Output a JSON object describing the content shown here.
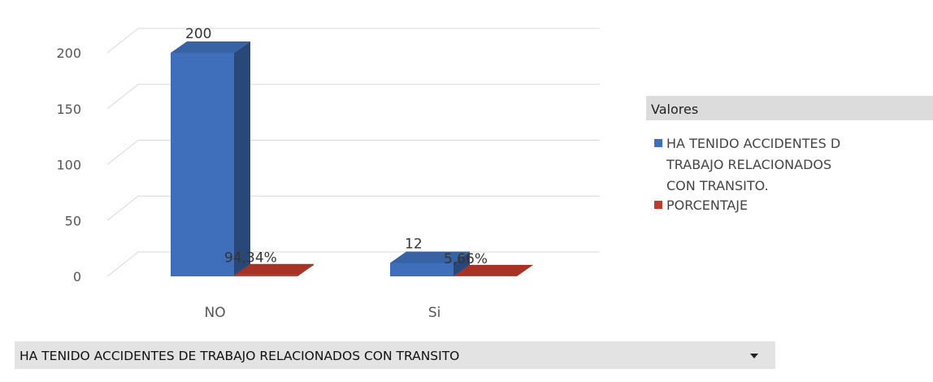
{
  "chart_data": {
    "type": "bar",
    "three_d": true,
    "categories": [
      "NO",
      "Si"
    ],
    "series": [
      {
        "name": "HA TENIDO ACCIDENTES DE TRABAJO RELACIONADOS CON TRANSITO.",
        "legend_lines": [
          "HA TENIDO ACCIDENTES D",
          "TRABAJO RELACIONADOS",
          "CON TRANSITO."
        ],
        "values": [
          200,
          12
        ],
        "data_labels": [
          "200",
          "12"
        ],
        "color": "#3f6fba"
      },
      {
        "name": "PORCENTAJE",
        "legend_lines": [
          "PORCENTAJE"
        ],
        "values": [
          0.9434,
          0.0566
        ],
        "data_labels": [
          "94,34%",
          "5,66%"
        ],
        "color": "#c0392b"
      }
    ],
    "ylim": [
      0,
      200
    ],
    "yticks": [
      0,
      50,
      100,
      150,
      200
    ],
    "grid": true,
    "legend": {
      "title": "Valores",
      "placement": "right"
    },
    "field_button": {
      "label": "HA TENIDO ACCIDENTES DE TRABAJO RELACIONADOS CON TRANSITO",
      "icon": "dropdown-arrow-icon"
    }
  }
}
